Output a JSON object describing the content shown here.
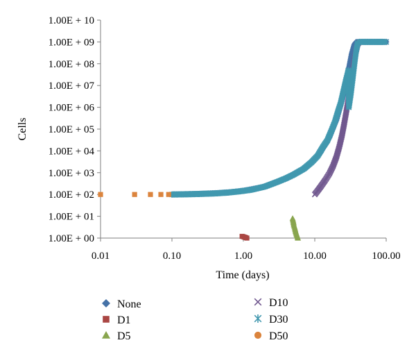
{
  "chart_data": {
    "type": "scatter",
    "xlabel": "Time (days)",
    "ylabel": "Cells",
    "x_scale": "log",
    "y_scale": "log",
    "xlim": [
      0.01,
      100
    ],
    "ylim": [
      1,
      10000000000
    ],
    "x_ticks": [
      "0.01",
      "0.10",
      "1.00",
      "10.00",
      "100.00"
    ],
    "y_ticks": [
      "1.00E + 00",
      "1.00E + 01",
      "1.00E + 02",
      "1.00E + 03",
      "1.00E + 04",
      "1.00E + 05",
      "1.00E + 06",
      "1.00E + 07",
      "1.00E + 08",
      "1.00E + 09",
      "1.00E + 10"
    ],
    "legend_position": "bottom",
    "series": [
      {
        "name": "None",
        "marker": "diamond",
        "color": "#4572A7",
        "points": [
          [
            0.1,
            100
          ],
          [
            0.2,
            105
          ],
          [
            0.4,
            115
          ],
          [
            0.7,
            130
          ],
          [
            1,
            150
          ],
          [
            2,
            230
          ],
          [
            3,
            380
          ],
          [
            5,
            800
          ],
          [
            8,
            2000
          ],
          [
            12,
            8000
          ],
          [
            16,
            40000
          ],
          [
            20,
            250000
          ],
          [
            24,
            2000000
          ],
          [
            27,
            10000000
          ],
          [
            30,
            60000000
          ],
          [
            33,
            300000000
          ],
          [
            36,
            800000000
          ],
          [
            38,
            1000000000
          ],
          [
            42,
            1000000000
          ],
          [
            50,
            1000000000
          ],
          [
            60,
            1000000000
          ],
          [
            70,
            1000000000
          ],
          [
            85,
            1000000000
          ],
          [
            100,
            1000000000
          ]
        ]
      },
      {
        "name": "D1",
        "marker": "square",
        "color": "#AA4643",
        "points": [
          [
            0.96,
            1.2
          ],
          [
            1.0,
            1.15
          ],
          [
            1.04,
            1.1
          ],
          [
            1.08,
            1.05
          ],
          [
            1.12,
            1.0
          ]
        ]
      },
      {
        "name": "D5",
        "marker": "triangle",
        "color": "#89A54E",
        "points": [
          [
            4.9,
            8
          ],
          [
            5.0,
            6
          ],
          [
            5.1,
            4
          ],
          [
            5.25,
            3
          ],
          [
            5.4,
            2
          ],
          [
            5.6,
            1.4
          ],
          [
            5.8,
            1.0
          ]
        ]
      },
      {
        "name": "D10",
        "marker": "x",
        "color": "#71588F",
        "points": [
          [
            10,
            100
          ],
          [
            11,
            150
          ],
          [
            12,
            220
          ],
          [
            14,
            450
          ],
          [
            16,
            900
          ],
          [
            18,
            2000
          ],
          [
            20,
            5000
          ],
          [
            22,
            15000
          ],
          [
            24,
            50000
          ],
          [
            26,
            200000
          ],
          [
            28,
            800000
          ],
          [
            30,
            3000000
          ],
          [
            32,
            10000000
          ],
          [
            34,
            40000000
          ],
          [
            36,
            150000000
          ],
          [
            38,
            400000000
          ],
          [
            40,
            800000000
          ],
          [
            42,
            1000000000
          ],
          [
            46,
            1000000000
          ],
          [
            55,
            1000000000
          ],
          [
            70,
            1000000000
          ],
          [
            85,
            1000000000
          ],
          [
            100,
            1000000000
          ]
        ]
      },
      {
        "name": "D30",
        "marker": "asterisk",
        "color": "#4198AF",
        "points": [
          [
            0.1,
            100
          ],
          [
            0.15,
            102
          ],
          [
            0.25,
            106
          ],
          [
            0.4,
            112
          ],
          [
            0.6,
            122
          ],
          [
            0.9,
            140
          ],
          [
            1.3,
            165
          ],
          [
            2,
            230
          ],
          [
            3,
            380
          ],
          [
            4,
            560
          ],
          [
            5,
            800
          ],
          [
            7,
            1500
          ],
          [
            9,
            3000
          ],
          [
            11,
            6000
          ],
          [
            13,
            15000
          ],
          [
            15,
            30000
          ],
          [
            17,
            80000
          ],
          [
            19,
            200000
          ],
          [
            21,
            600000
          ],
          [
            23,
            1500000
          ],
          [
            25,
            5000000
          ],
          [
            27,
            15000000
          ],
          [
            28.5,
            30000000
          ],
          [
            29.5,
            50000000
          ],
          [
            30,
            1000000
          ],
          [
            32,
            4000000
          ],
          [
            34,
            20000000
          ],
          [
            36,
            100000000
          ],
          [
            38,
            400000000
          ],
          [
            40,
            900000000
          ],
          [
            42,
            1000000000
          ],
          [
            48,
            1000000000
          ],
          [
            60,
            1000000000
          ],
          [
            75,
            1000000000
          ],
          [
            90,
            1000000000
          ],
          [
            100,
            1000000000
          ]
        ]
      },
      {
        "name": "D50",
        "marker": "circle",
        "color": "#DB843D",
        "points": [
          [
            0.01,
            100
          ],
          [
            0.03,
            100
          ],
          [
            0.05,
            100
          ],
          [
            0.07,
            100
          ],
          [
            0.09,
            100
          ]
        ]
      }
    ]
  }
}
